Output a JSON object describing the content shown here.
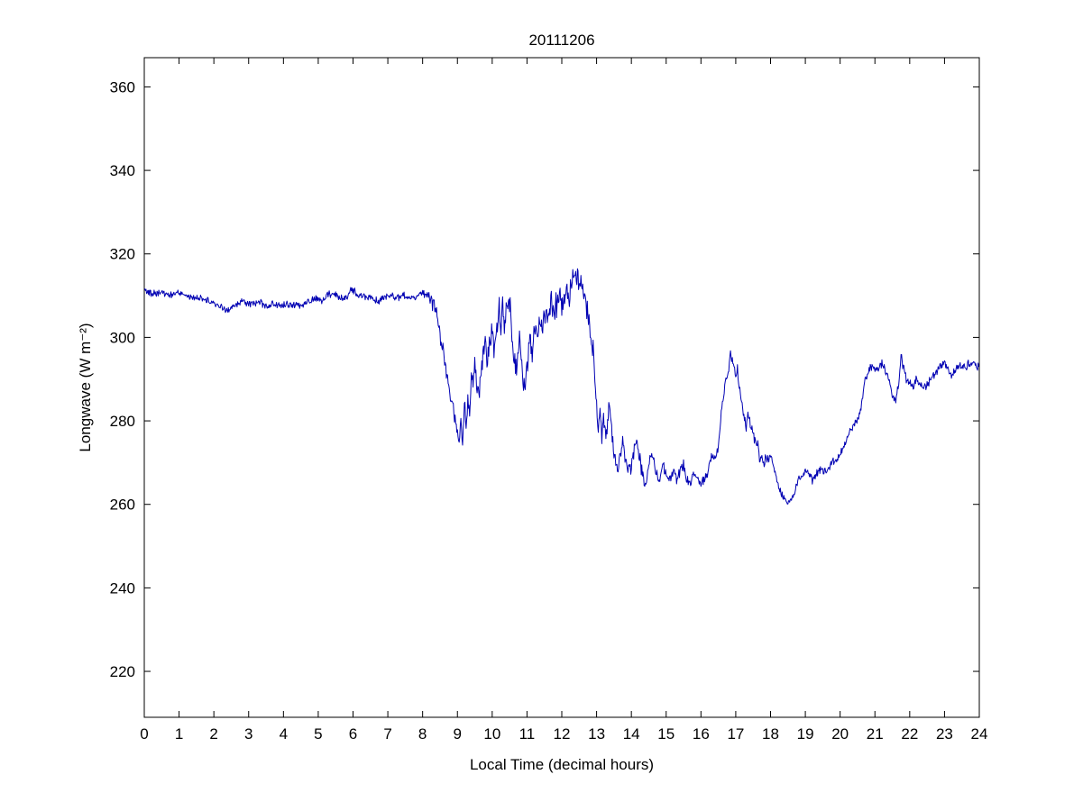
{
  "page": {
    "background": "#ffffff"
  },
  "chart_data": {
    "type": "line",
    "title": "20111206",
    "xlabel": "Local Time (decimal hours)",
    "ylabel": "Longwave (W m⁻²)",
    "xlim": [
      0,
      24
    ],
    "ylim": [
      209,
      367
    ],
    "xticks": [
      0,
      1,
      2,
      3,
      4,
      5,
      6,
      7,
      8,
      9,
      10,
      11,
      12,
      13,
      14,
      15,
      16,
      17,
      18,
      19,
      20,
      21,
      22,
      23,
      24
    ],
    "yticks": [
      220,
      240,
      260,
      280,
      300,
      320,
      340,
      360
    ],
    "grid": false,
    "legend": "none",
    "axis_color": "#000000",
    "tick_font_px": 17,
    "line": {
      "color": "#0000b3",
      "width": 1
    },
    "series": [
      {
        "name": "longwave_wm2",
        "points": [
          [
            0.0,
            311
          ],
          [
            0.25,
            310.5
          ],
          [
            0.5,
            311
          ],
          [
            0.75,
            310
          ],
          [
            1.0,
            310.5
          ],
          [
            1.25,
            309.5
          ],
          [
            1.5,
            309.5
          ],
          [
            1.75,
            309
          ],
          [
            2.0,
            308
          ],
          [
            2.25,
            307
          ],
          [
            2.4,
            306
          ],
          [
            2.6,
            307.5
          ],
          [
            2.8,
            308.5
          ],
          [
            3.0,
            308
          ],
          [
            3.25,
            308.5
          ],
          [
            3.5,
            307.5
          ],
          [
            3.75,
            308
          ],
          [
            4.0,
            307.5
          ],
          [
            4.25,
            308
          ],
          [
            4.5,
            307.5
          ],
          [
            4.75,
            308.5
          ],
          [
            5.0,
            309.5
          ],
          [
            5.1,
            308.5
          ],
          [
            5.25,
            310.5
          ],
          [
            5.5,
            310
          ],
          [
            5.75,
            309
          ],
          [
            5.9,
            311
          ],
          [
            6.0,
            311
          ],
          [
            6.25,
            310
          ],
          [
            6.5,
            309.5
          ],
          [
            6.75,
            308.5
          ],
          [
            7.0,
            310.5
          ],
          [
            7.25,
            309.5
          ],
          [
            7.5,
            310
          ],
          [
            7.75,
            309
          ],
          [
            8.0,
            311
          ],
          [
            8.1,
            310
          ],
          [
            8.2,
            310.5
          ],
          [
            8.3,
            308
          ],
          [
            8.4,
            305
          ],
          [
            8.5,
            301
          ],
          [
            8.6,
            297
          ],
          [
            8.7,
            291
          ],
          [
            8.8,
            286
          ],
          [
            8.9,
            282
          ],
          [
            9.0,
            277
          ],
          [
            9.05,
            275
          ],
          [
            9.1,
            280
          ],
          [
            9.15,
            276
          ],
          [
            9.2,
            284
          ],
          [
            9.25,
            279
          ],
          [
            9.3,
            286
          ],
          [
            9.35,
            281
          ],
          [
            9.4,
            291
          ],
          [
            9.45,
            286
          ],
          [
            9.5,
            293
          ],
          [
            9.55,
            288
          ],
          [
            9.6,
            285
          ],
          [
            9.7,
            294
          ],
          [
            9.8,
            299
          ],
          [
            9.85,
            293
          ],
          [
            9.9,
            297
          ],
          [
            10.0,
            303
          ],
          [
            10.05,
            297
          ],
          [
            10.1,
            301
          ],
          [
            10.2,
            306
          ],
          [
            10.25,
            300
          ],
          [
            10.3,
            309
          ],
          [
            10.35,
            303
          ],
          [
            10.4,
            306
          ],
          [
            10.5,
            309
          ],
          [
            10.55,
            302
          ],
          [
            10.6,
            297
          ],
          [
            10.7,
            291
          ],
          [
            10.75,
            296
          ],
          [
            10.8,
            302
          ],
          [
            10.85,
            295
          ],
          [
            10.9,
            288
          ],
          [
            11.0,
            294
          ],
          [
            11.1,
            299
          ],
          [
            11.15,
            295
          ],
          [
            11.2,
            303
          ],
          [
            11.3,
            300
          ],
          [
            11.4,
            305
          ],
          [
            11.45,
            301
          ],
          [
            11.5,
            307
          ],
          [
            11.6,
            304
          ],
          [
            11.7,
            309
          ],
          [
            11.8,
            306
          ],
          [
            11.9,
            310
          ],
          [
            12.0,
            308
          ],
          [
            12.1,
            311
          ],
          [
            12.2,
            309
          ],
          [
            12.3,
            313
          ],
          [
            12.35,
            315
          ],
          [
            12.4,
            316
          ],
          [
            12.5,
            313
          ],
          [
            12.55,
            314
          ],
          [
            12.6,
            311
          ],
          [
            12.7,
            308
          ],
          [
            12.8,
            303
          ],
          [
            12.85,
            299
          ],
          [
            12.9,
            298
          ],
          [
            12.95,
            290
          ],
          [
            13.0,
            284
          ],
          [
            13.05,
            277
          ],
          [
            13.1,
            283
          ],
          [
            13.15,
            276
          ],
          [
            13.2,
            281
          ],
          [
            13.3,
            276
          ],
          [
            13.35,
            284
          ],
          [
            13.4,
            281
          ],
          [
            13.5,
            272
          ],
          [
            13.55,
            269
          ],
          [
            13.6,
            268
          ],
          [
            13.7,
            273
          ],
          [
            13.75,
            276
          ],
          [
            13.8,
            272
          ],
          [
            13.9,
            269
          ],
          [
            14.0,
            268
          ],
          [
            14.1,
            273
          ],
          [
            14.15,
            277
          ],
          [
            14.2,
            272
          ],
          [
            14.3,
            268
          ],
          [
            14.4,
            264
          ],
          [
            14.5,
            270
          ],
          [
            14.6,
            272
          ],
          [
            14.7,
            268
          ],
          [
            14.8,
            266
          ],
          [
            14.9,
            270
          ],
          [
            15.0,
            267
          ],
          [
            15.1,
            266
          ],
          [
            15.2,
            268
          ],
          [
            15.3,
            266
          ],
          [
            15.4,
            268
          ],
          [
            15.5,
            270
          ],
          [
            15.6,
            266
          ],
          [
            15.7,
            265
          ],
          [
            15.8,
            268
          ],
          [
            15.9,
            266
          ],
          [
            16.0,
            264.5
          ],
          [
            16.1,
            266
          ],
          [
            16.2,
            268
          ],
          [
            16.3,
            272
          ],
          [
            16.4,
            270
          ],
          [
            16.5,
            274
          ],
          [
            16.6,
            283
          ],
          [
            16.7,
            289
          ],
          [
            16.8,
            293
          ],
          [
            16.85,
            296
          ],
          [
            16.9,
            295
          ],
          [
            17.0,
            291
          ],
          [
            17.05,
            293
          ],
          [
            17.1,
            288
          ],
          [
            17.2,
            283
          ],
          [
            17.3,
            279
          ],
          [
            17.35,
            282
          ],
          [
            17.4,
            280
          ],
          [
            17.5,
            277
          ],
          [
            17.6,
            275
          ],
          [
            17.7,
            271
          ],
          [
            17.8,
            270
          ],
          [
            17.9,
            271
          ],
          [
            18.0,
            272
          ],
          [
            18.1,
            268
          ],
          [
            18.2,
            265
          ],
          [
            18.3,
            263
          ],
          [
            18.4,
            261
          ],
          [
            18.5,
            260
          ],
          [
            18.6,
            261
          ],
          [
            18.7,
            263
          ],
          [
            18.8,
            266
          ],
          [
            18.9,
            267
          ],
          [
            19.0,
            268
          ],
          [
            19.2,
            266
          ],
          [
            19.4,
            268
          ],
          [
            19.6,
            268
          ],
          [
            19.8,
            270
          ],
          [
            20.0,
            272
          ],
          [
            20.2,
            276
          ],
          [
            20.4,
            279
          ],
          [
            20.5,
            280
          ],
          [
            20.6,
            283
          ],
          [
            20.7,
            289
          ],
          [
            20.8,
            292
          ],
          [
            20.9,
            293
          ],
          [
            21.0,
            293
          ],
          [
            21.1,
            292
          ],
          [
            21.2,
            294
          ],
          [
            21.3,
            292
          ],
          [
            21.4,
            290
          ],
          [
            21.5,
            286
          ],
          [
            21.6,
            285
          ],
          [
            21.7,
            290
          ],
          [
            21.75,
            296
          ],
          [
            21.8,
            293
          ],
          [
            21.9,
            290
          ],
          [
            22.0,
            289
          ],
          [
            22.1,
            288
          ],
          [
            22.2,
            290
          ],
          [
            22.4,
            288
          ],
          [
            22.6,
            290
          ],
          [
            22.8,
            292
          ],
          [
            23.0,
            294
          ],
          [
            23.2,
            291
          ],
          [
            23.4,
            293
          ],
          [
            23.6,
            293
          ],
          [
            23.8,
            294
          ],
          [
            24.0,
            293
          ]
        ]
      }
    ],
    "noise": {
      "seed": 42,
      "step_hours": 0.0166667,
      "segments": [
        {
          "from": 0,
          "to": 8.2,
          "amp": 0.9
        },
        {
          "from": 8.2,
          "to": 9.2,
          "amp": 2.0
        },
        {
          "from": 9.2,
          "to": 13.0,
          "amp": 3.0
        },
        {
          "from": 13.0,
          "to": 14.5,
          "amp": 2.2
        },
        {
          "from": 14.5,
          "to": 16.2,
          "amp": 1.2
        },
        {
          "from": 16.2,
          "to": 18.0,
          "amp": 1.5
        },
        {
          "from": 18.0,
          "to": 20.5,
          "amp": 1.0
        },
        {
          "from": 20.5,
          "to": 24.01,
          "amp": 1.1
        }
      ]
    }
  }
}
